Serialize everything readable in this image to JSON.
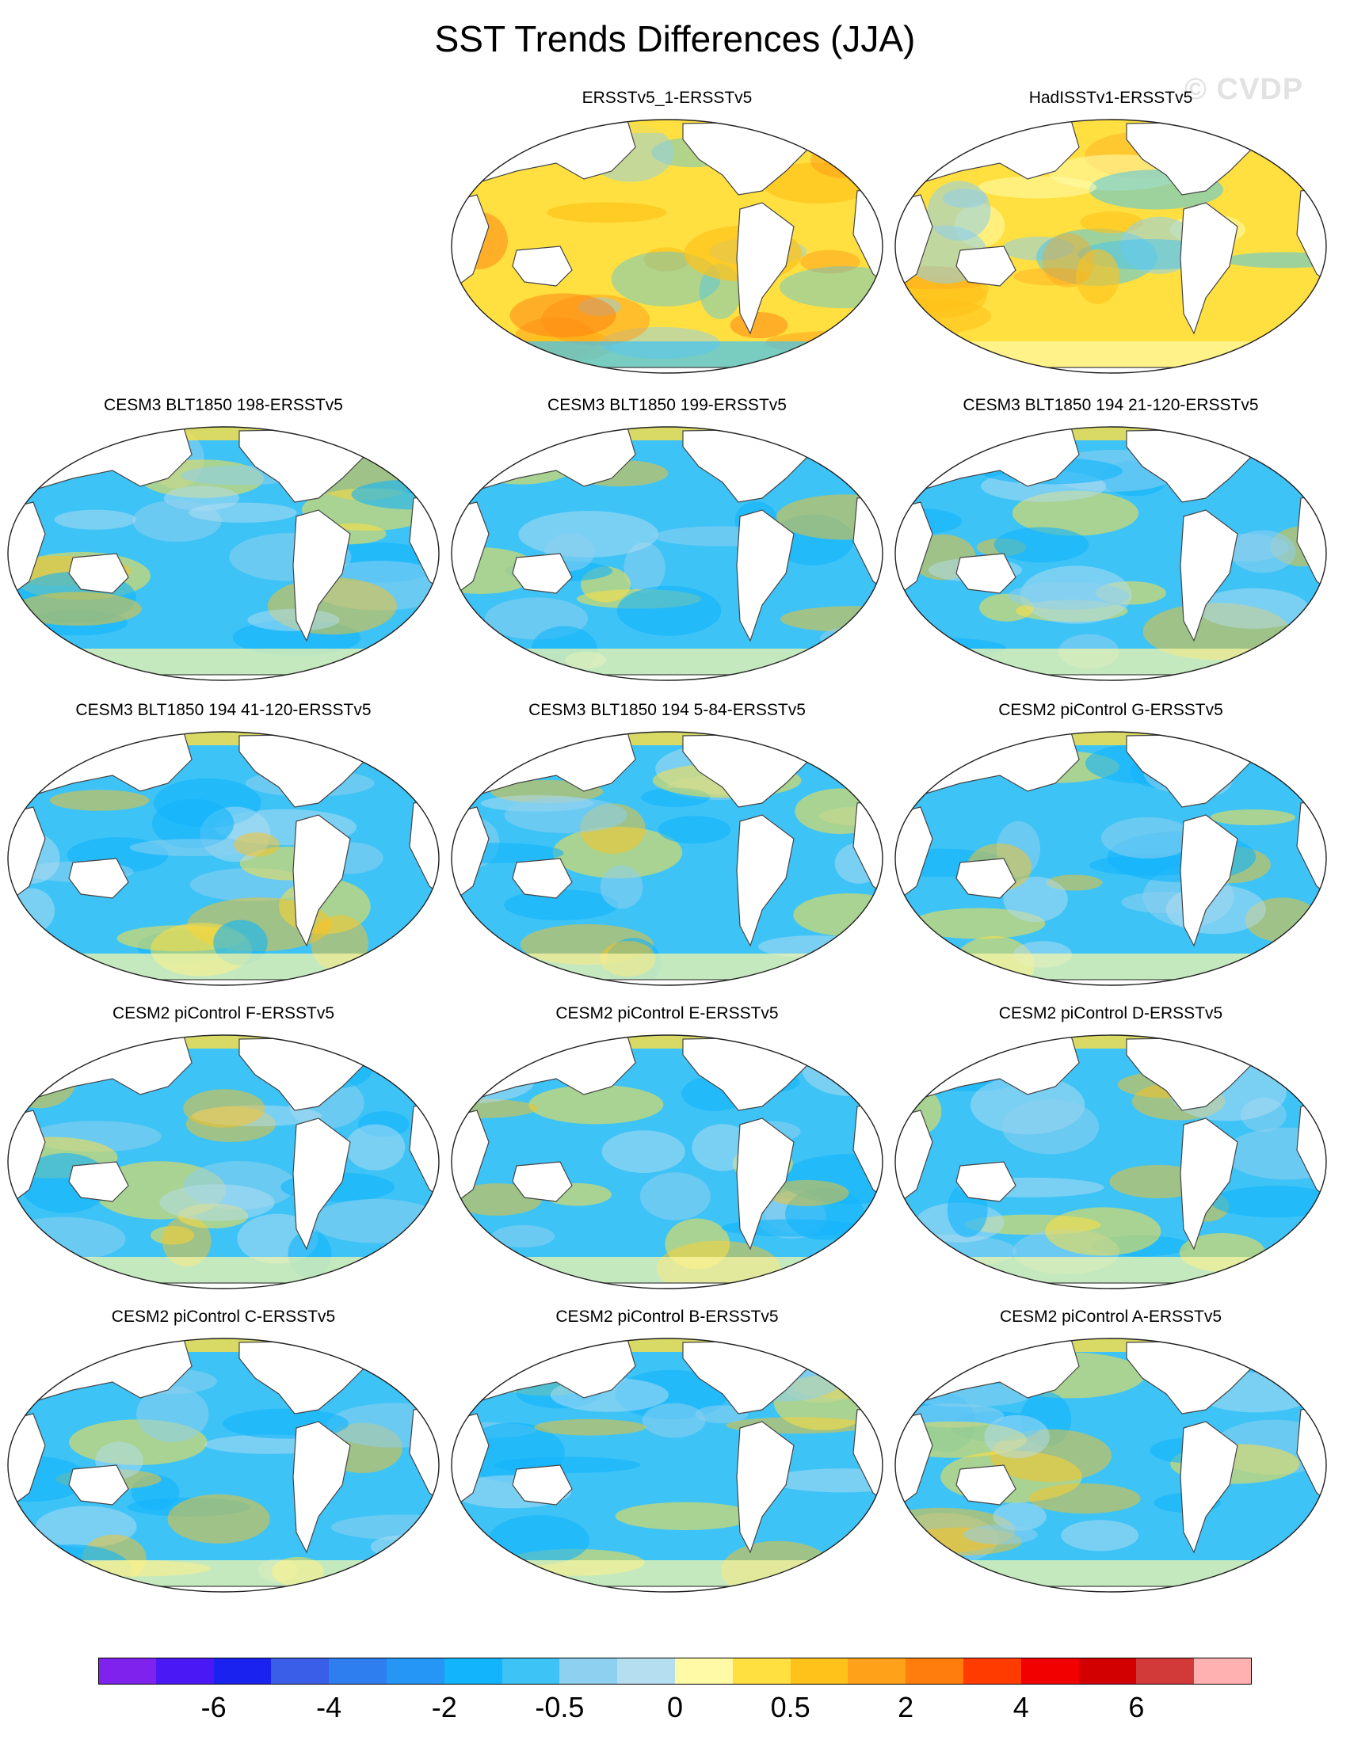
{
  "title": "SST Trends Differences (JJA)",
  "watermark": "© CVDP",
  "panels": [
    {
      "title": "ERSSTv5_1-ERSSTv5",
      "style": "warm"
    },
    {
      "title": "HadISSTv1-ERSSTv5",
      "style": "mixed"
    },
    {
      "title": "CESM3 BLT1850 198-ERSSTv5",
      "style": "cool"
    },
    {
      "title": "CESM3 BLT1850 199-ERSSTv5",
      "style": "cool"
    },
    {
      "title": "CESM3 BLT1850 194 21-120-ERSSTv5",
      "style": "cool"
    },
    {
      "title": "CESM3 BLT1850 194 41-120-ERSSTv5",
      "style": "cool"
    },
    {
      "title": "CESM3 BLT1850 194 5-84-ERSSTv5",
      "style": "cool"
    },
    {
      "title": "CESM2 piControl G-ERSSTv5",
      "style": "cool"
    },
    {
      "title": "CESM2 piControl F-ERSSTv5",
      "style": "cool"
    },
    {
      "title": "CESM2 piControl E-ERSSTv5",
      "style": "cool"
    },
    {
      "title": "CESM2 piControl D-ERSSTv5",
      "style": "cool"
    },
    {
      "title": "CESM2 piControl C-ERSSTv5",
      "style": "cool"
    },
    {
      "title": "CESM2 piControl B-ERSSTv5",
      "style": "cool"
    },
    {
      "title": "CESM2 piControl A-ERSSTv5",
      "style": "cool"
    }
  ],
  "colorbar": {
    "colors": [
      "#7f22ee",
      "#4a18f5",
      "#1a22f0",
      "#3b5ee8",
      "#2e7ef0",
      "#2596f5",
      "#12b4fb",
      "#3ec3f7",
      "#8ed0ef",
      "#b5def0",
      "#fffaa6",
      "#ffe040",
      "#ffc21a",
      "#ffa21a",
      "#ff7d0d",
      "#ff3b00",
      "#f20000",
      "#d20000",
      "#d23a3a",
      "#ffb0b0"
    ],
    "labels": [
      "-6",
      "-4",
      "-2",
      "-0.5",
      "0",
      "0.5",
      "2",
      "4",
      "6"
    ]
  }
}
